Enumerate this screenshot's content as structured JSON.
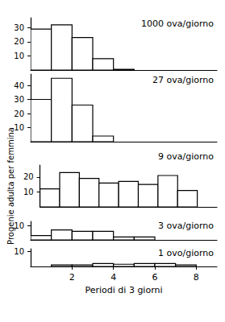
{
  "chart_data": [
    {
      "type": "histogram",
      "title": "1000 ova/giorno",
      "bins": [
        0,
        1,
        2,
        3,
        4,
        5
      ],
      "counts": [
        29,
        32,
        23,
        8,
        0.5
      ],
      "color": "#000000",
      "xlim": [
        0,
        9
      ],
      "xticks": [
        2,
        4,
        6,
        8
      ],
      "ylim": [
        0,
        37
      ],
      "yticks": [
        10,
        20,
        30
      ],
      "tick_labels": "y"
    },
    {
      "type": "histogram",
      "title": "27 ova/giorno",
      "bins": [
        0,
        1,
        2,
        3,
        4
      ],
      "counts": [
        30,
        45,
        26,
        4
      ],
      "color": "#000000",
      "xlim": [
        0,
        9
      ],
      "xticks": [
        2,
        4,
        6,
        8
      ],
      "ylim": [
        0,
        48
      ],
      "yticks": [
        10,
        20,
        30,
        40
      ],
      "tick_labels": "y"
    },
    {
      "type": "histogram",
      "title": "9 ova/giorno",
      "bins": [
        0,
        1,
        2,
        3,
        4,
        5,
        6,
        7,
        8
      ],
      "counts": [
        12,
        23,
        19,
        16,
        17,
        15,
        21,
        11
      ],
      "color": "#000000",
      "xlim": [
        0,
        9
      ],
      "xticks": [
        2,
        4,
        6,
        8
      ],
      "ylim": [
        0,
        28
      ],
      "yticks": [
        10,
        20
      ],
      "tick_labels": "y",
      "ylabel": "Progenie adulta per femmina"
    },
    {
      "type": "histogram",
      "title": "3 ova/giorno",
      "bins": [
        0,
        1,
        2,
        3,
        4,
        5,
        6
      ],
      "counts": [
        3,
        7,
        6,
        6,
        2,
        2
      ],
      "color": "#000000",
      "xlim": [
        0,
        9
      ],
      "xticks": [
        2,
        4,
        6,
        8
      ],
      "ylim": [
        0,
        13
      ],
      "yticks": [
        10
      ],
      "tick_labels": "y"
    },
    {
      "type": "histogram",
      "title": "1 ovo/giorno",
      "bins": [
        1,
        2,
        3,
        4,
        5,
        6,
        7,
        8
      ],
      "counts": [
        1,
        1,
        2,
        1.5,
        2,
        2,
        1
      ],
      "color": "#000000",
      "xlim": [
        0,
        9
      ],
      "xticks": [
        2,
        4,
        6,
        8
      ],
      "ylim": [
        0,
        12
      ],
      "yticks": [
        10
      ],
      "xlabel": "Periodi di 3 giorni"
    }
  ]
}
